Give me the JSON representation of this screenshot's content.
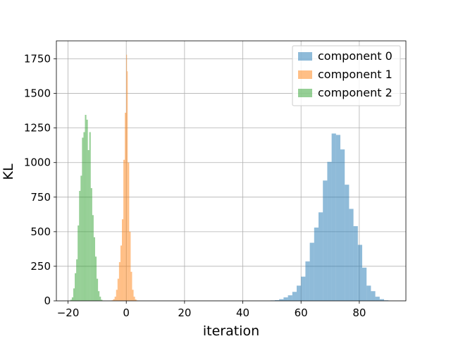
{
  "chart_data": {
    "type": "bar",
    "title": "",
    "xlabel": "iteration",
    "ylabel": "KL",
    "xlim": [
      -24,
      96
    ],
    "ylim": [
      0,
      1880
    ],
    "xticks": [
      -20,
      0,
      20,
      40,
      60,
      80
    ],
    "xtick_labels": [
      "−20",
      "0",
      "20",
      "40",
      "60",
      "80"
    ],
    "yticks": [
      0,
      250,
      500,
      750,
      1000,
      1250,
      1500,
      1750
    ],
    "ytick_labels": [
      "0",
      "250",
      "500",
      "750",
      "1000",
      "1250",
      "1500",
      "1750"
    ],
    "grid": true,
    "legend_position": "upper right",
    "series": [
      {
        "name": "component 0",
        "color": "#1f77b4",
        "alpha": 0.5,
        "bins": [
          [
            49.5,
            51,
            3
          ],
          [
            51,
            52.5,
            5
          ],
          [
            52.5,
            54,
            12
          ],
          [
            54,
            55.5,
            25
          ],
          [
            55.5,
            57,
            40
          ],
          [
            57,
            58.5,
            65
          ],
          [
            58.5,
            60,
            110
          ],
          [
            60,
            61.5,
            175
          ],
          [
            61.5,
            63,
            285
          ],
          [
            63,
            64.5,
            420
          ],
          [
            64.5,
            66,
            530
          ],
          [
            66,
            67.5,
            640
          ],
          [
            67.5,
            69,
            870
          ],
          [
            69,
            70.5,
            1005
          ],
          [
            70.5,
            72,
            1210
          ],
          [
            72,
            73.5,
            1200
          ],
          [
            73.5,
            75,
            1095
          ],
          [
            75,
            76.5,
            840
          ],
          [
            76.5,
            78,
            665
          ],
          [
            78,
            79.5,
            540
          ],
          [
            79.5,
            81,
            405
          ],
          [
            81,
            82.5,
            240
          ],
          [
            82.5,
            84,
            110
          ],
          [
            84,
            85.5,
            70
          ],
          [
            85.5,
            87,
            30
          ],
          [
            87,
            88.5,
            12
          ],
          [
            88.5,
            90,
            4
          ]
        ]
      },
      {
        "name": "component 1",
        "color": "#ff7f0e",
        "alpha": 0.5,
        "bins": [
          [
            -5,
            -4.5,
            4
          ],
          [
            -4.5,
            -4,
            12
          ],
          [
            -4,
            -3.5,
            30
          ],
          [
            -3.5,
            -3,
            80
          ],
          [
            -3,
            -2.5,
            160
          ],
          [
            -2.5,
            -2,
            280
          ],
          [
            -2,
            -1.5,
            400
          ],
          [
            -1.5,
            -1,
            590
          ],
          [
            -1,
            -0.5,
            1020
          ],
          [
            -0.5,
            0,
            1360
          ],
          [
            0,
            0.25,
            1780
          ],
          [
            0.25,
            0.5,
            1660
          ],
          [
            0.5,
            1,
            1000
          ],
          [
            1,
            1.5,
            500
          ],
          [
            1.5,
            2,
            210
          ],
          [
            2,
            2.5,
            80
          ],
          [
            2.5,
            3,
            30
          ],
          [
            3,
            3.5,
            10
          ],
          [
            3.5,
            4,
            3
          ]
        ]
      },
      {
        "name": "component 2",
        "color": "#2ca02c",
        "alpha": 0.5,
        "bins": [
          [
            -19.2,
            -18.7,
            8
          ],
          [
            -18.7,
            -18.2,
            25
          ],
          [
            -18.2,
            -17.7,
            90
          ],
          [
            -17.7,
            -17.2,
            200
          ],
          [
            -17.2,
            -16.7,
            300
          ],
          [
            -16.7,
            -16.2,
            545
          ],
          [
            -16.2,
            -15.7,
            795
          ],
          [
            -15.7,
            -15.2,
            905
          ],
          [
            -15.2,
            -14.7,
            1180
          ],
          [
            -14.7,
            -14.2,
            1220
          ],
          [
            -14.2,
            -13.7,
            1345
          ],
          [
            -13.7,
            -13.2,
            1310
          ],
          [
            -13.2,
            -12.7,
            1090
          ],
          [
            -12.7,
            -12.2,
            1220
          ],
          [
            -12.2,
            -11.7,
            815
          ],
          [
            -11.7,
            -11.2,
            620
          ],
          [
            -11.2,
            -10.7,
            460
          ],
          [
            -10.7,
            -10.2,
            320
          ],
          [
            -10.2,
            -9.7,
            160
          ],
          [
            -9.7,
            -9.2,
            70
          ],
          [
            -9.2,
            -8.7,
            30
          ],
          [
            -8.7,
            -8.2,
            8
          ]
        ]
      }
    ]
  }
}
